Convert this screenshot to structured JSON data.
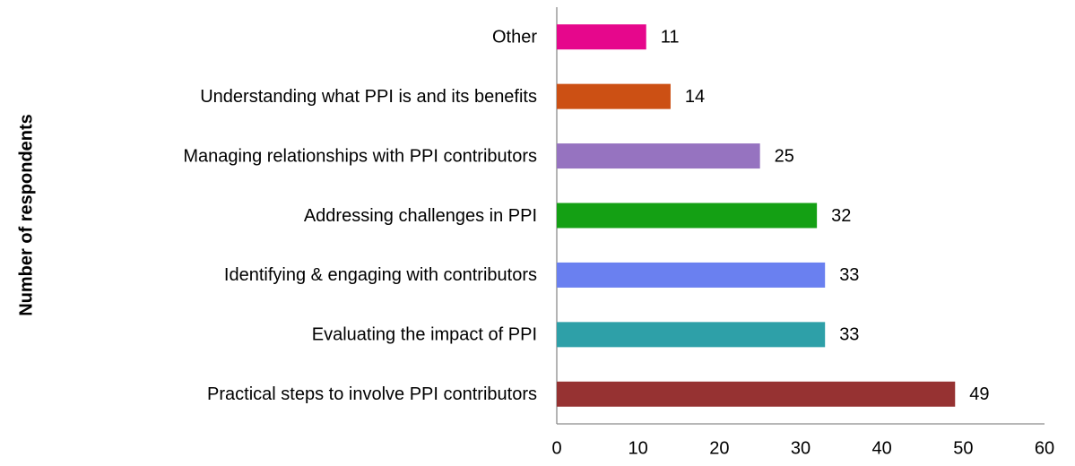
{
  "chart_data": {
    "type": "bar",
    "orientation": "horizontal",
    "y_label": "Number of respondents",
    "categories": [
      "Other",
      "Understanding what PPI is and its benefits",
      "Managing relationships with PPI contributors",
      "Addressing challenges in PPI",
      "Identifying & engaging with contributors",
      "Evaluating the impact of PPI",
      "Practical steps to involve PPI contributors"
    ],
    "values": [
      11,
      14,
      25,
      32,
      33,
      33,
      49
    ],
    "colors": [
      "#e6078c",
      "#cc5014",
      "#9673c0",
      "#14a014",
      "#6a80f0",
      "#2ea0a8",
      "#963232"
    ],
    "xlim": [
      0,
      60
    ],
    "xticks": [
      0,
      10,
      20,
      30,
      40,
      50,
      60
    ],
    "grid": false
  }
}
